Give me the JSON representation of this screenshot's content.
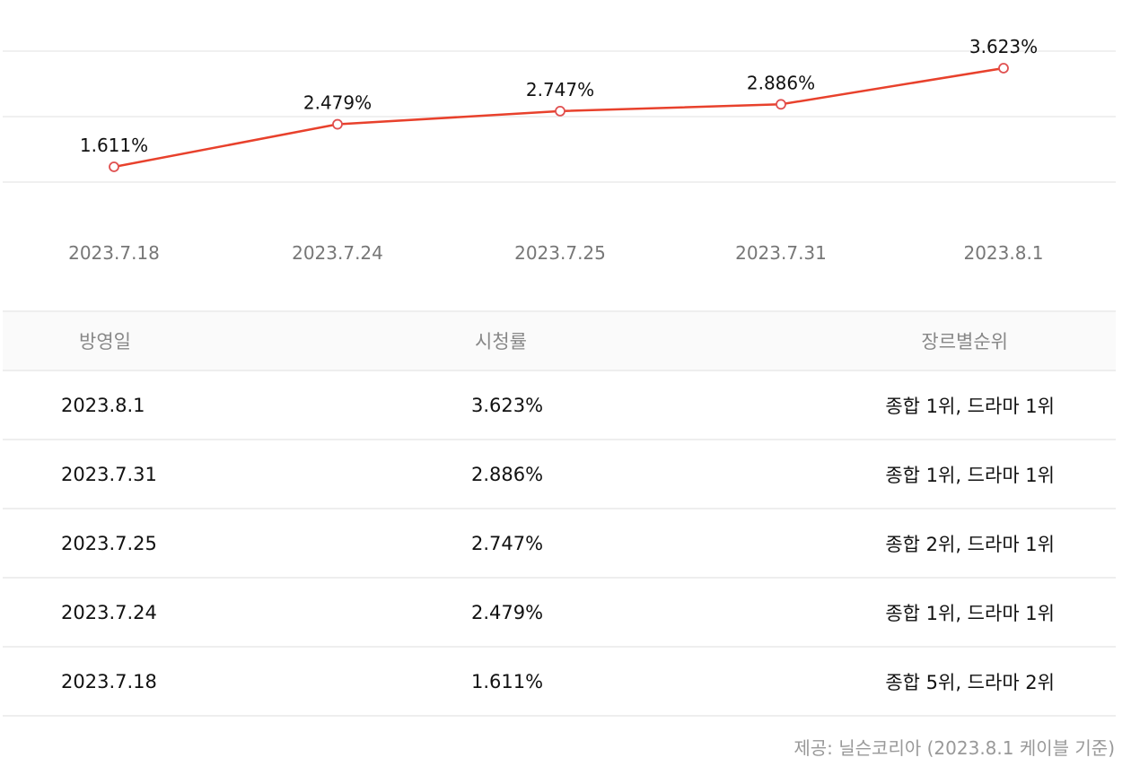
{
  "chart_data": {
    "type": "line",
    "title": "",
    "xlabel": "",
    "ylabel": "시청률",
    "categories": [
      "2023.7.18",
      "2023.7.24",
      "2023.7.25",
      "2023.7.31",
      "2023.8.1"
    ],
    "series": [
      {
        "name": "시청률",
        "values": [
          1.611,
          2.479,
          2.747,
          2.886,
          3.623
        ],
        "labels": [
          "1.611%",
          "2.479%",
          "2.747%",
          "2.886%",
          "3.623%"
        ]
      }
    ],
    "grid": true,
    "legend": "none",
    "line_color": "#e8412c",
    "marker": "hollow-circle"
  },
  "table": {
    "headers": {
      "date": "방영일",
      "rating": "시청률",
      "rank": "장르별순위"
    },
    "rows": [
      {
        "date": "2023.8.1",
        "rating": "3.623%",
        "rank": "종합 1위, 드라마 1위"
      },
      {
        "date": "2023.7.31",
        "rating": "2.886%",
        "rank": "종합 1위, 드라마 1위"
      },
      {
        "date": "2023.7.25",
        "rating": "2.747%",
        "rank": "종합 2위, 드라마 1위"
      },
      {
        "date": "2023.7.24",
        "rating": "2.479%",
        "rank": "종합 1위, 드라마 1위"
      },
      {
        "date": "2023.7.18",
        "rating": "1.611%",
        "rank": "종합 5위, 드라마 2위"
      }
    ]
  },
  "footer": {
    "source": "제공: 닐슨코리아 (2023.8.1 케이블 기준)"
  }
}
